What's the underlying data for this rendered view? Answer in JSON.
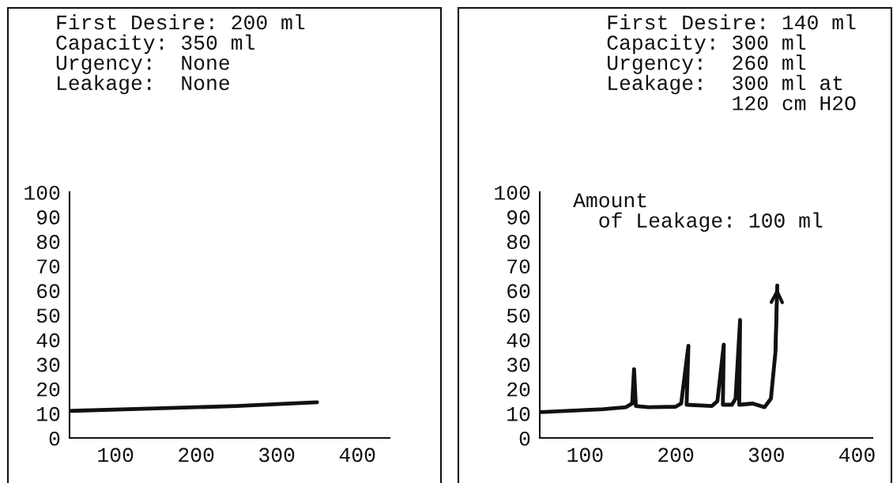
{
  "chart_data": [
    {
      "type": "line",
      "annotations": [
        "First Desire: 200 ml\nCapacity: 350 ml\nUrgency:  None\nLeakage:  None"
      ],
      "series": [
        {
          "color": "#111111",
          "x": [
            45,
            150,
            250,
            350
          ],
          "values": [
            11,
            12,
            13,
            14.5
          ]
        }
      ],
      "xlim": [
        43,
        440
      ],
      "ylim": [
        0,
        100
      ],
      "xticks": [
        100,
        200,
        300,
        400
      ],
      "yticks": [
        0,
        10,
        20,
        30,
        40,
        50,
        60,
        70,
        80,
        90,
        100
      ]
    },
    {
      "type": "line",
      "annotations": [
        "First Desire: 140 ml\nCapacity: 300 ml\nUrgency:  260 ml\nLeakage:  300 ml at\n          120 cm H2O",
        "Amount\n  of Leakage: 100 ml"
      ],
      "series": [
        {
          "color": "#111111",
          "x": [
            50,
            120,
            145,
            152,
            154,
            156,
            170,
            200,
            206,
            214,
            212,
            240,
            246,
            253,
            252,
            262,
            266,
            271,
            270,
            285,
            298,
            305,
            310,
            312
          ],
          "values": [
            10.5,
            11.7,
            12.5,
            14,
            28,
            13,
            12.5,
            12.7,
            14,
            37.5,
            13.5,
            13,
            15,
            38,
            13.5,
            13.5,
            16,
            48,
            13.5,
            14,
            12.5,
            16,
            35,
            62
          ]
        }
      ],
      "xlim": [
        50,
        417
      ],
      "ylim": [
        0,
        100
      ],
      "xticks": [
        100,
        200,
        300,
        400
      ],
      "yticks": [
        0,
        10,
        20,
        30,
        40,
        50,
        60,
        70,
        80,
        90,
        100
      ]
    }
  ]
}
